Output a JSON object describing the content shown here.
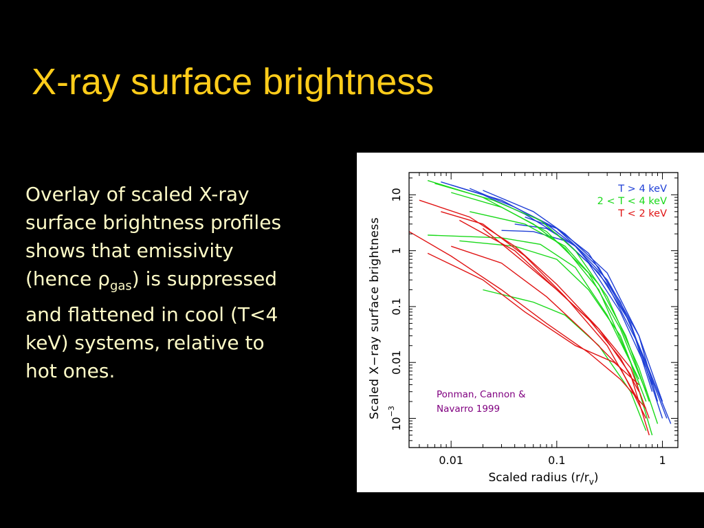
{
  "slide": {
    "title": "X-ray surface brightness",
    "body": {
      "line1": "Overlay of scaled X-ray",
      "line2": "surface brightness profiles",
      "line3": "shows that emissivity",
      "line4_pre": "(hence ",
      "rho_symbol": "ρ",
      "rho_sub": "gas",
      "line4_post": ") is suppressed",
      "line5": "and flattened in cool (T<4",
      "line6": "keV) systems, relative to",
      "line7": "hot ones."
    }
  },
  "chart_data": {
    "type": "line",
    "x_scale": "log",
    "y_scale": "log",
    "xlabel": "Scaled radius (r/r",
    "xlabel_sub": "v",
    "xlabel_close": ")",
    "ylabel": "Scaled X−ray surface brightness",
    "xlim": [
      0.004,
      1.4
    ],
    "ylim": [
      0.0003,
      25
    ],
    "x_ticks": [
      {
        "v": 0.01,
        "label": "0.01"
      },
      {
        "v": 0.1,
        "label": "0.1"
      },
      {
        "v": 1,
        "label": "1"
      }
    ],
    "y_ticks": [
      {
        "v": 10,
        "label": "10"
      },
      {
        "v": 1,
        "label": "1"
      },
      {
        "v": 0.1,
        "label": "0.1"
      },
      {
        "v": 0.01,
        "label": "0.01"
      },
      {
        "v": 0.001,
        "label": "10",
        "sup": "−3"
      }
    ],
    "legend": [
      {
        "label": "T > 4 keV",
        "color": "#1f3fd6"
      },
      {
        "label": "2 < T < 4 keV",
        "color": "#1ad91a"
      },
      {
        "label": "T < 2 keV",
        "color": "#e01414"
      }
    ],
    "legend_position": "top-right",
    "annotation": {
      "line1": "Ponman, Cannon &",
      "line2": "Navarro 1999",
      "color": "#800080"
    },
    "series": [
      {
        "group": "hot",
        "color": "#1f3fd6",
        "points": [
          [
            0.008,
            17
          ],
          [
            0.02,
            10
          ],
          [
            0.05,
            4.5
          ],
          [
            0.1,
            2
          ],
          [
            0.2,
            0.6
          ],
          [
            0.4,
            0.08
          ],
          [
            0.7,
            0.008
          ],
          [
            1.0,
            0.001
          ]
        ]
      },
      {
        "group": "hot",
        "color": "#1f3fd6",
        "points": [
          [
            0.01,
            15
          ],
          [
            0.03,
            8
          ],
          [
            0.08,
            3
          ],
          [
            0.15,
            1.2
          ],
          [
            0.3,
            0.3
          ],
          [
            0.6,
            0.03
          ],
          [
            0.9,
            0.002
          ]
        ]
      },
      {
        "group": "hot",
        "color": "#1f3fd6",
        "points": [
          [
            0.015,
            13
          ],
          [
            0.04,
            6
          ],
          [
            0.1,
            2.5
          ],
          [
            0.25,
            0.5
          ],
          [
            0.5,
            0.05
          ],
          [
            0.8,
            0.003
          ]
        ]
      },
      {
        "group": "hot",
        "color": "#1f3fd6",
        "points": [
          [
            0.02,
            12
          ],
          [
            0.06,
            5
          ],
          [
            0.12,
            2
          ],
          [
            0.3,
            0.4
          ],
          [
            0.6,
            0.03
          ],
          [
            1.0,
            0.002
          ]
        ]
      },
      {
        "group": "hot",
        "color": "#1f3fd6",
        "points": [
          [
            0.03,
            2.3
          ],
          [
            0.06,
            2.2
          ],
          [
            0.12,
            1.5
          ],
          [
            0.25,
            0.4
          ],
          [
            0.5,
            0.05
          ],
          [
            0.8,
            0.004
          ]
        ]
      },
      {
        "group": "hot",
        "color": "#1f3fd6",
        "points": [
          [
            0.04,
            3
          ],
          [
            0.08,
            2.5
          ],
          [
            0.15,
            1.2
          ],
          [
            0.3,
            0.25
          ],
          [
            0.6,
            0.02
          ],
          [
            1.1,
            0.001
          ]
        ]
      },
      {
        "group": "hot",
        "color": "#1f3fd6",
        "points": [
          [
            0.05,
            4
          ],
          [
            0.1,
            2.5
          ],
          [
            0.2,
            0.9
          ],
          [
            0.4,
            0.12
          ],
          [
            0.7,
            0.01
          ],
          [
            1.2,
            0.0008
          ]
        ]
      },
      {
        "group": "warm",
        "color": "#1ad91a",
        "points": [
          [
            0.006,
            18
          ],
          [
            0.02,
            9
          ],
          [
            0.06,
            3
          ],
          [
            0.12,
            1.1
          ],
          [
            0.25,
            0.2
          ],
          [
            0.5,
            0.01
          ],
          [
            0.8,
            0.0005
          ]
        ]
      },
      {
        "group": "warm",
        "color": "#1ad91a",
        "points": [
          [
            0.007,
            16
          ],
          [
            0.025,
            8
          ],
          [
            0.07,
            3.5
          ],
          [
            0.15,
            1
          ],
          [
            0.3,
            0.15
          ],
          [
            0.6,
            0.008
          ],
          [
            0.9,
            0.0008
          ]
        ]
      },
      {
        "group": "warm",
        "color": "#1ad91a",
        "points": [
          [
            0.01,
            11
          ],
          [
            0.03,
            6
          ],
          [
            0.08,
            2.2
          ],
          [
            0.2,
            0.4
          ],
          [
            0.4,
            0.04
          ],
          [
            0.7,
            0.003
          ]
        ]
      },
      {
        "group": "warm",
        "color": "#1ad91a",
        "points": [
          [
            0.006,
            1.9
          ],
          [
            0.03,
            1.7
          ],
          [
            0.07,
            1.3
          ],
          [
            0.15,
            0.5
          ],
          [
            0.3,
            0.07
          ],
          [
            0.6,
            0.005
          ]
        ]
      },
      {
        "group": "warm",
        "color": "#1ad91a",
        "points": [
          [
            0.012,
            1.5
          ],
          [
            0.04,
            1.2
          ],
          [
            0.1,
            0.7
          ],
          [
            0.2,
            0.2
          ],
          [
            0.4,
            0.03
          ],
          [
            0.7,
            0.002
          ]
        ]
      },
      {
        "group": "warm",
        "color": "#1ad91a",
        "points": [
          [
            0.02,
            0.2
          ],
          [
            0.06,
            0.12
          ],
          [
            0.12,
            0.07
          ],
          [
            0.25,
            0.02
          ],
          [
            0.5,
            0.003
          ],
          [
            0.7,
            0.0006
          ]
        ]
      },
      {
        "group": "warm",
        "color": "#1ad91a",
        "points": [
          [
            0.015,
            5
          ],
          [
            0.05,
            3
          ],
          [
            0.12,
            1.2
          ],
          [
            0.25,
            0.25
          ],
          [
            0.45,
            0.03
          ],
          [
            0.75,
            0.002
          ]
        ]
      },
      {
        "group": "cool",
        "color": "#e01414",
        "points": [
          [
            0.004,
            2.2
          ],
          [
            0.01,
            0.8
          ],
          [
            0.03,
            0.2
          ],
          [
            0.08,
            0.05
          ],
          [
            0.2,
            0.015
          ],
          [
            0.4,
            0.005
          ],
          [
            0.7,
            0.0015
          ]
        ]
      },
      {
        "group": "cool",
        "color": "#e01414",
        "points": [
          [
            0.005,
            8
          ],
          [
            0.015,
            4
          ],
          [
            0.04,
            1.2
          ],
          [
            0.1,
            0.25
          ],
          [
            0.25,
            0.04
          ],
          [
            0.5,
            0.006
          ],
          [
            0.75,
            0.0005
          ]
        ]
      },
      {
        "group": "cool",
        "color": "#e01414",
        "points": [
          [
            0.008,
            5
          ],
          [
            0.02,
            3
          ],
          [
            0.05,
            0.8
          ],
          [
            0.12,
            0.15
          ],
          [
            0.3,
            0.02
          ],
          [
            0.6,
            0.002
          ]
        ]
      },
      {
        "group": "cool",
        "color": "#e01414",
        "points": [
          [
            0.01,
            1.2
          ],
          [
            0.03,
            0.6
          ],
          [
            0.08,
            0.15
          ],
          [
            0.2,
            0.03
          ],
          [
            0.4,
            0.008
          ],
          [
            0.7,
            0.001
          ]
        ]
      },
      {
        "group": "cool",
        "color": "#e01414",
        "points": [
          [
            0.006,
            0.9
          ],
          [
            0.02,
            0.3
          ],
          [
            0.05,
            0.08
          ],
          [
            0.15,
            0.02
          ],
          [
            0.35,
            0.01
          ],
          [
            0.6,
            0.004
          ]
        ]
      },
      {
        "group": "cool",
        "color": "#e01414",
        "points": [
          [
            0.02,
            2.5
          ],
          [
            0.05,
            0.6
          ],
          [
            0.1,
            0.2
          ],
          [
            0.2,
            0.06
          ],
          [
            0.4,
            0.012
          ],
          [
            0.6,
            0.003
          ]
        ]
      },
      {
        "group": "cool",
        "color": "#e01414",
        "points": [
          [
            0.012,
            3.5
          ],
          [
            0.04,
            1
          ],
          [
            0.1,
            0.2
          ],
          [
            0.25,
            0.04
          ],
          [
            0.5,
            0.008
          ],
          [
            0.75,
            0.001
          ]
        ]
      }
    ]
  }
}
